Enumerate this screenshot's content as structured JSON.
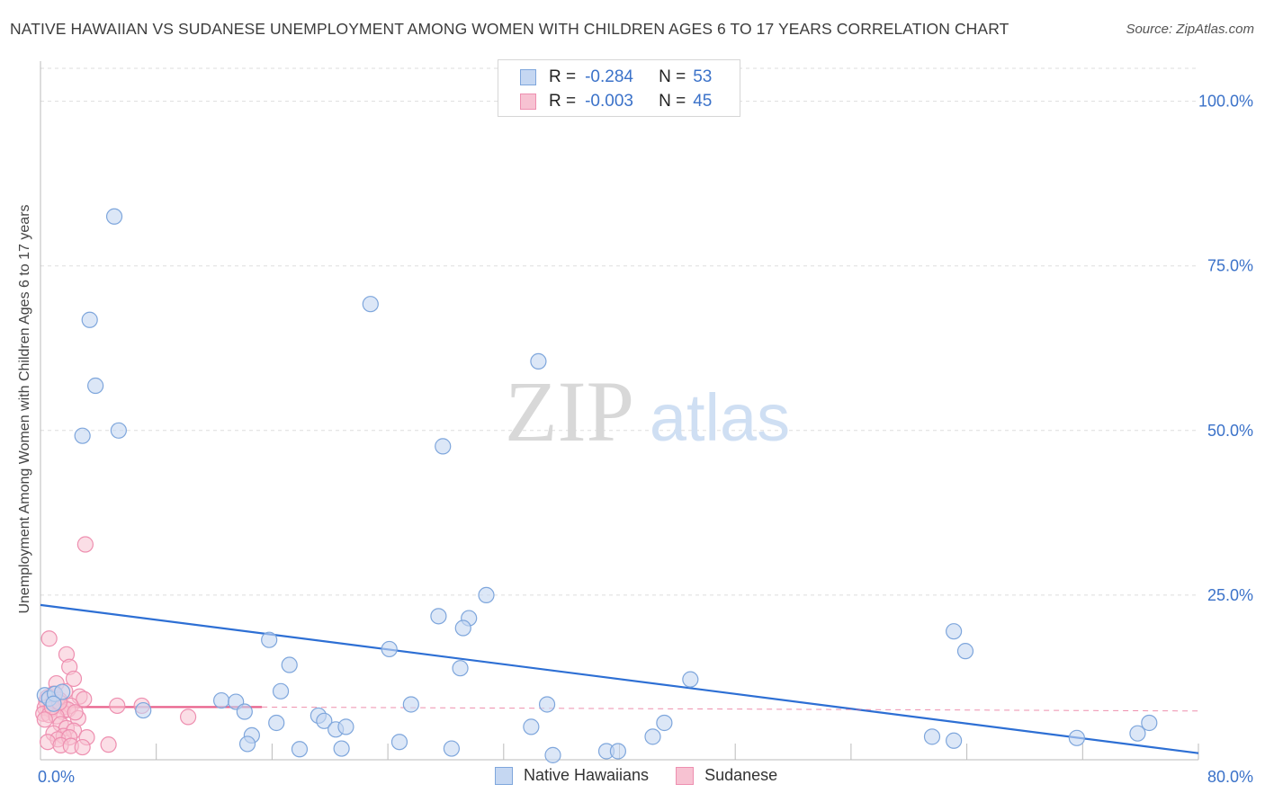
{
  "title": "NATIVE HAWAIIAN VS SUDANESE UNEMPLOYMENT AMONG WOMEN WITH CHILDREN AGES 6 TO 17 YEARS CORRELATION CHART",
  "source": "Source: ZipAtlas.com",
  "watermark": {
    "zip": "ZIP",
    "atlas": "atlas"
  },
  "legend_top": [
    {
      "r_label": "R =",
      "r_value": "-0.284",
      "n_label": "N =",
      "n_value": "53"
    },
    {
      "r_label": "R =",
      "r_value": "-0.003",
      "n_label": "N =",
      "n_value": "45"
    }
  ],
  "colors": {
    "blue_fill": "#c5d7f2",
    "blue_stroke": "#7ea6dc",
    "blue_line": "#2d6fd4",
    "pink_fill": "#f7c2d2",
    "pink_stroke": "#ee8fb0",
    "pink_line": "#e8618b",
    "tick_text": "#3b72c9",
    "grid": "#dddddd"
  },
  "chart_data": {
    "type": "scatter",
    "title": "NATIVE HAWAIIAN VS SUDANESE UNEMPLOYMENT AMONG WOMEN WITH CHILDREN AGES 6 TO 17 YEARS CORRELATION CHART",
    "xlabel": "",
    "ylabel": "Unemployment Among Women with Children Ages 6 to 17 years",
    "xlim": [
      0,
      80
    ],
    "ylim": [
      0,
      105
    ],
    "x_tick_labels": [
      "0.0%",
      "80.0%"
    ],
    "y_ticks": [
      25,
      50,
      75,
      100
    ],
    "y_tick_labels": [
      "25.0%",
      "50.0%",
      "75.0%",
      "100.0%"
    ],
    "legend_position": "bottom-center",
    "series": [
      {
        "name": "Native Hawaiians",
        "color": "#7ea6dc",
        "r": -0.284,
        "n": 53,
        "trend": {
          "x": [
            0,
            80
          ],
          "y": [
            23.5,
            1.0
          ],
          "style": "solid"
        },
        "points": [
          [
            5.1,
            82.5
          ],
          [
            3.4,
            66.8
          ],
          [
            3.8,
            56.8
          ],
          [
            2.9,
            49.2
          ],
          [
            5.4,
            50.0
          ],
          [
            22.8,
            69.2
          ],
          [
            34.4,
            60.5
          ],
          [
            27.8,
            47.6
          ],
          [
            30.8,
            25.0
          ],
          [
            27.5,
            21.8
          ],
          [
            29.6,
            21.5
          ],
          [
            29.2,
            20.0
          ],
          [
            15.8,
            18.2
          ],
          [
            24.1,
            16.8
          ],
          [
            17.2,
            14.4
          ],
          [
            29.0,
            13.9
          ],
          [
            44.9,
            12.2
          ],
          [
            63.1,
            19.5
          ],
          [
            63.9,
            16.5
          ],
          [
            16.6,
            10.4
          ],
          [
            12.5,
            9.0
          ],
          [
            13.5,
            8.8
          ],
          [
            14.1,
            7.3
          ],
          [
            25.6,
            8.4
          ],
          [
            35.0,
            8.4
          ],
          [
            7.1,
            7.5
          ],
          [
            19.2,
            6.7
          ],
          [
            19.6,
            5.9
          ],
          [
            16.3,
            5.6
          ],
          [
            20.4,
            4.6
          ],
          [
            21.1,
            5.0
          ],
          [
            14.6,
            3.7
          ],
          [
            14.3,
            2.4
          ],
          [
            33.9,
            5.0
          ],
          [
            43.1,
            5.6
          ],
          [
            42.3,
            3.5
          ],
          [
            61.6,
            3.5
          ],
          [
            63.1,
            2.9
          ],
          [
            71.6,
            3.3
          ],
          [
            75.8,
            4.0
          ],
          [
            76.6,
            5.6
          ],
          [
            17.9,
            1.6
          ],
          [
            20.8,
            1.7
          ],
          [
            24.8,
            2.7
          ],
          [
            28.4,
            1.7
          ],
          [
            39.1,
            1.3
          ],
          [
            39.9,
            1.3
          ],
          [
            35.4,
            0.7
          ],
          [
            0.3,
            9.8
          ],
          [
            0.6,
            9.3
          ],
          [
            1.0,
            10.0
          ],
          [
            1.5,
            10.3
          ],
          [
            0.9,
            8.5
          ]
        ]
      },
      {
        "name": "Sudanese",
        "color": "#ee8fb0",
        "r": -0.003,
        "n": 45,
        "trend": {
          "x": [
            0,
            15.3
          ],
          "y": [
            8.0,
            8.0
          ],
          "style": "solid",
          "dashed_extension_to": 80
        },
        "points": [
          [
            3.1,
            32.7
          ],
          [
            0.6,
            18.4
          ],
          [
            1.8,
            16.0
          ],
          [
            2.0,
            14.1
          ],
          [
            2.3,
            12.3
          ],
          [
            1.1,
            11.6
          ],
          [
            1.7,
            10.4
          ],
          [
            0.9,
            10.0
          ],
          [
            0.5,
            9.5
          ],
          [
            1.3,
            9.1
          ],
          [
            2.7,
            9.6
          ],
          [
            3.0,
            9.2
          ],
          [
            0.4,
            8.9
          ],
          [
            0.8,
            8.6
          ],
          [
            1.2,
            8.3
          ],
          [
            1.6,
            8.0
          ],
          [
            2.1,
            8.2
          ],
          [
            0.3,
            7.9
          ],
          [
            0.7,
            7.6
          ],
          [
            1.5,
            7.3
          ],
          [
            1.9,
            7.6
          ],
          [
            5.3,
            8.2
          ],
          [
            7.0,
            8.2
          ],
          [
            0.2,
            7.0
          ],
          [
            0.6,
            6.8
          ],
          [
            1.1,
            6.6
          ],
          [
            2.6,
            6.3
          ],
          [
            10.2,
            6.5
          ],
          [
            1.4,
            5.4
          ],
          [
            1.8,
            4.8
          ],
          [
            2.3,
            4.4
          ],
          [
            0.9,
            4.0
          ],
          [
            1.6,
            3.6
          ],
          [
            1.2,
            3.1
          ],
          [
            2.0,
            3.4
          ],
          [
            3.2,
            3.4
          ],
          [
            0.5,
            2.7
          ],
          [
            1.4,
            2.2
          ],
          [
            2.1,
            2.1
          ],
          [
            2.9,
            1.9
          ],
          [
            4.7,
            2.3
          ],
          [
            0.8,
            8.0
          ],
          [
            1.3,
            8.7
          ],
          [
            2.4,
            7.2
          ],
          [
            0.3,
            6.1
          ]
        ]
      }
    ]
  }
}
